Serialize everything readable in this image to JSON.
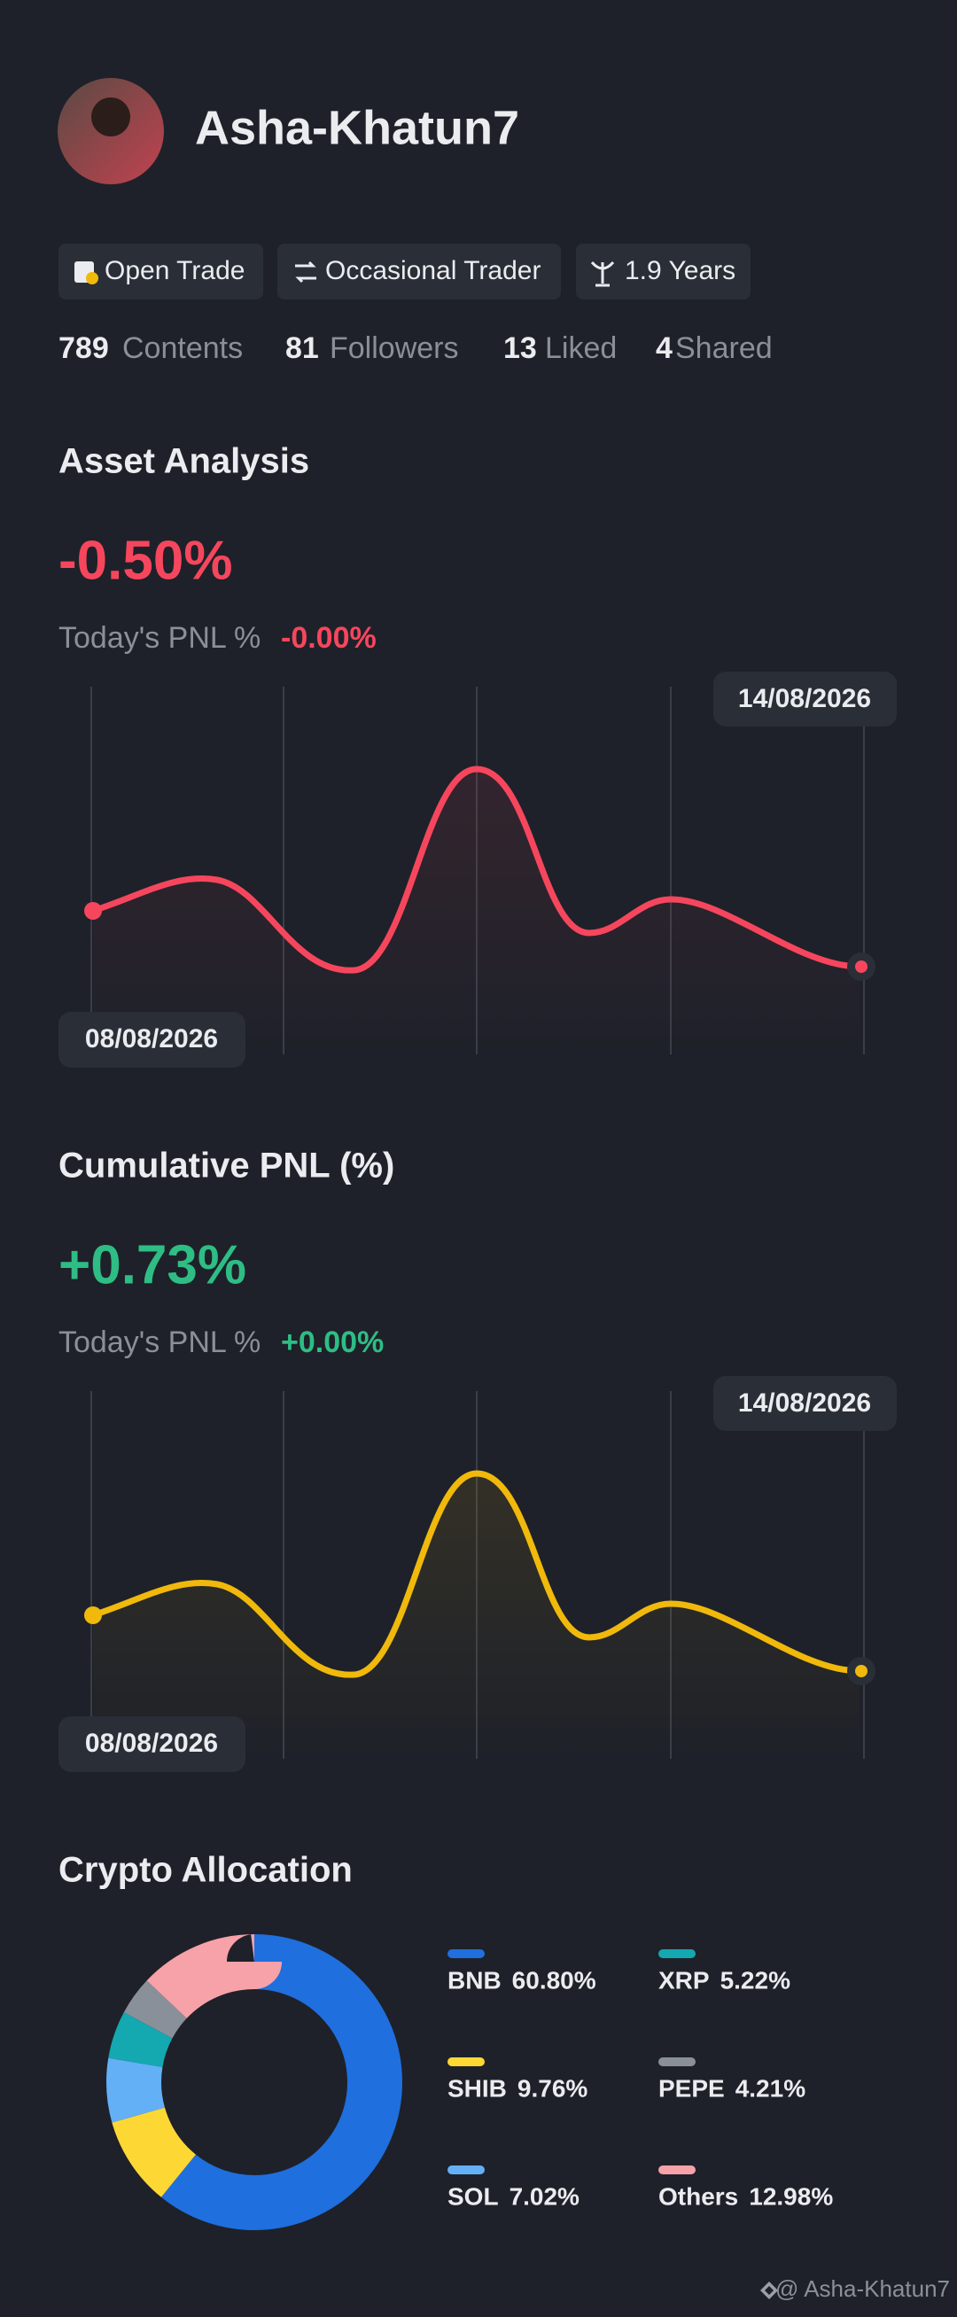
{
  "profile": {
    "name": "Asha-Khatun7",
    "tags": [
      "Open Trade",
      "Occasional Trader",
      "1.9 Years"
    ],
    "stats": [
      {
        "value": 789,
        "label": "Contents"
      },
      {
        "value": 81,
        "label": "Followers"
      },
      {
        "value": 13,
        "label": "Liked"
      },
      {
        "value": 4,
        "label": "Shared"
      }
    ]
  },
  "asset_analysis": {
    "title": "Asset Analysis",
    "value": "-0.50%",
    "pnl_label": "Today's PNL %",
    "pnl_value": "-0.00%",
    "start_date": "08/08/2026",
    "end_date": "14/08/2026"
  },
  "cumulative_pnl": {
    "title": "Cumulative PNL (%)",
    "value": "+0.73%",
    "pnl_label": "Today's PNL %",
    "pnl_value": "+0.00%",
    "start_date": "08/08/2026",
    "end_date": "14/08/2026"
  },
  "chart_data": {
    "type": "pie",
    "title": "Crypto Allocation",
    "categories": [
      "BNB",
      "SHIB",
      "SOL",
      "XRP",
      "PEPE",
      "Others"
    ],
    "values": [
      60.8,
      9.76,
      7.02,
      5.22,
      4.21,
      12.98
    ],
    "value_labels": [
      "60.80%",
      "9.76%",
      "7.02%",
      "5.22%",
      "4.21%",
      "12.98%"
    ],
    "colors": [
      "#1f6fde",
      "#fdd835",
      "#64b0f6",
      "#14a8b0",
      "#8a9099",
      "#f7a1a8"
    ]
  },
  "footer": {
    "handle": "@ Asha-Khatun7"
  }
}
